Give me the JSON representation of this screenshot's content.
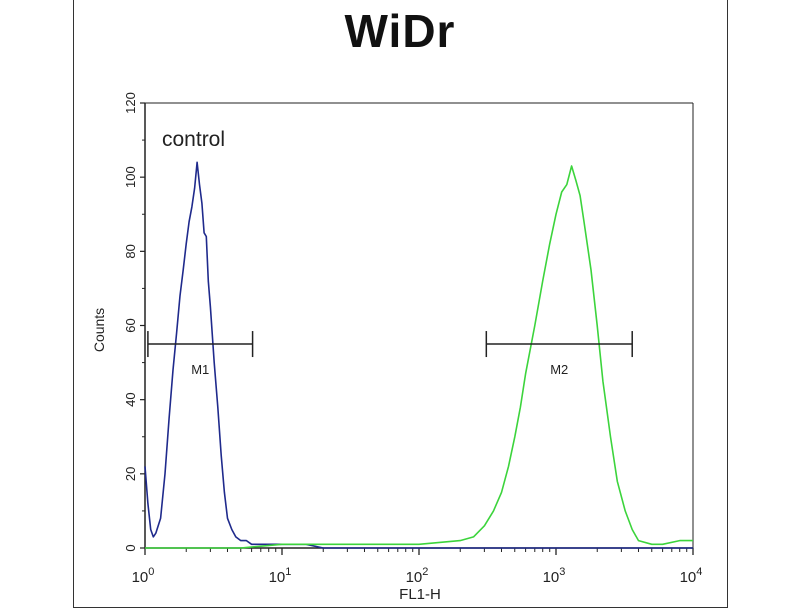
{
  "chart_data": {
    "type": "line",
    "title": "WiDr",
    "xlabel": "FL1-H",
    "ylabel": "Counts",
    "xscale": "log",
    "xlim": [
      1,
      10000
    ],
    "ylim": [
      0,
      120
    ],
    "y_ticks": [
      0,
      20,
      40,
      60,
      80,
      100,
      120
    ],
    "x_ticks": [
      {
        "value": 1,
        "base": "10",
        "exp": "0"
      },
      {
        "value": 10,
        "base": "10",
        "exp": "1"
      },
      {
        "value": 100,
        "base": "10",
        "exp": "2"
      },
      {
        "value": 1000,
        "base": "10",
        "exp": "3"
      },
      {
        "value": 10000,
        "base": "10",
        "exp": "4"
      }
    ],
    "grid": false,
    "series": [
      {
        "name": "control",
        "color": "#1f2a8c",
        "x": [
          1.0,
          1.05,
          1.1,
          1.15,
          1.2,
          1.3,
          1.4,
          1.5,
          1.6,
          1.7,
          1.8,
          1.9,
          2.0,
          2.1,
          2.2,
          2.3,
          2.4,
          2.5,
          2.6,
          2.7,
          2.8,
          2.9,
          3.0,
          3.2,
          3.4,
          3.6,
          3.8,
          4.0,
          4.3,
          4.6,
          5.0,
          5.5,
          6.0,
          7.0,
          8.0,
          10,
          12,
          15,
          20,
          30,
          50,
          100,
          1000,
          10000
        ],
        "y": [
          22,
          12,
          5,
          3,
          4,
          8,
          20,
          35,
          48,
          58,
          68,
          75,
          82,
          88,
          92,
          97,
          104,
          98,
          93,
          85,
          84,
          72,
          65,
          50,
          38,
          25,
          15,
          8,
          5,
          3,
          2,
          2,
          1,
          1,
          1,
          1,
          1,
          1,
          0,
          0,
          0,
          0,
          0,
          0
        ]
      },
      {
        "name": "",
        "color": "#3cd43c",
        "x": [
          1,
          2,
          5,
          10,
          30,
          100,
          200,
          250,
          300,
          350,
          400,
          450,
          500,
          550,
          600,
          700,
          800,
          900,
          1000,
          1100,
          1200,
          1300,
          1400,
          1500,
          1600,
          1800,
          2000,
          2200,
          2500,
          2800,
          3200,
          3600,
          4000,
          5000,
          6000,
          8000,
          10000
        ],
        "y": [
          0,
          0,
          0,
          1,
          1,
          1,
          2,
          3,
          6,
          10,
          15,
          22,
          30,
          38,
          47,
          60,
          72,
          82,
          90,
          96,
          98,
          103,
          99,
          95,
          88,
          75,
          60,
          45,
          30,
          18,
          10,
          5,
          2,
          1,
          1,
          2,
          2
        ]
      }
    ],
    "markers": [
      {
        "label": "M1",
        "x_start": 1.05,
        "x_end": 6.1,
        "y": 55
      },
      {
        "label": "M2",
        "x_start": 310,
        "x_end": 3600,
        "y": 55
      }
    ],
    "annotations": [
      {
        "text": "control"
      }
    ]
  }
}
